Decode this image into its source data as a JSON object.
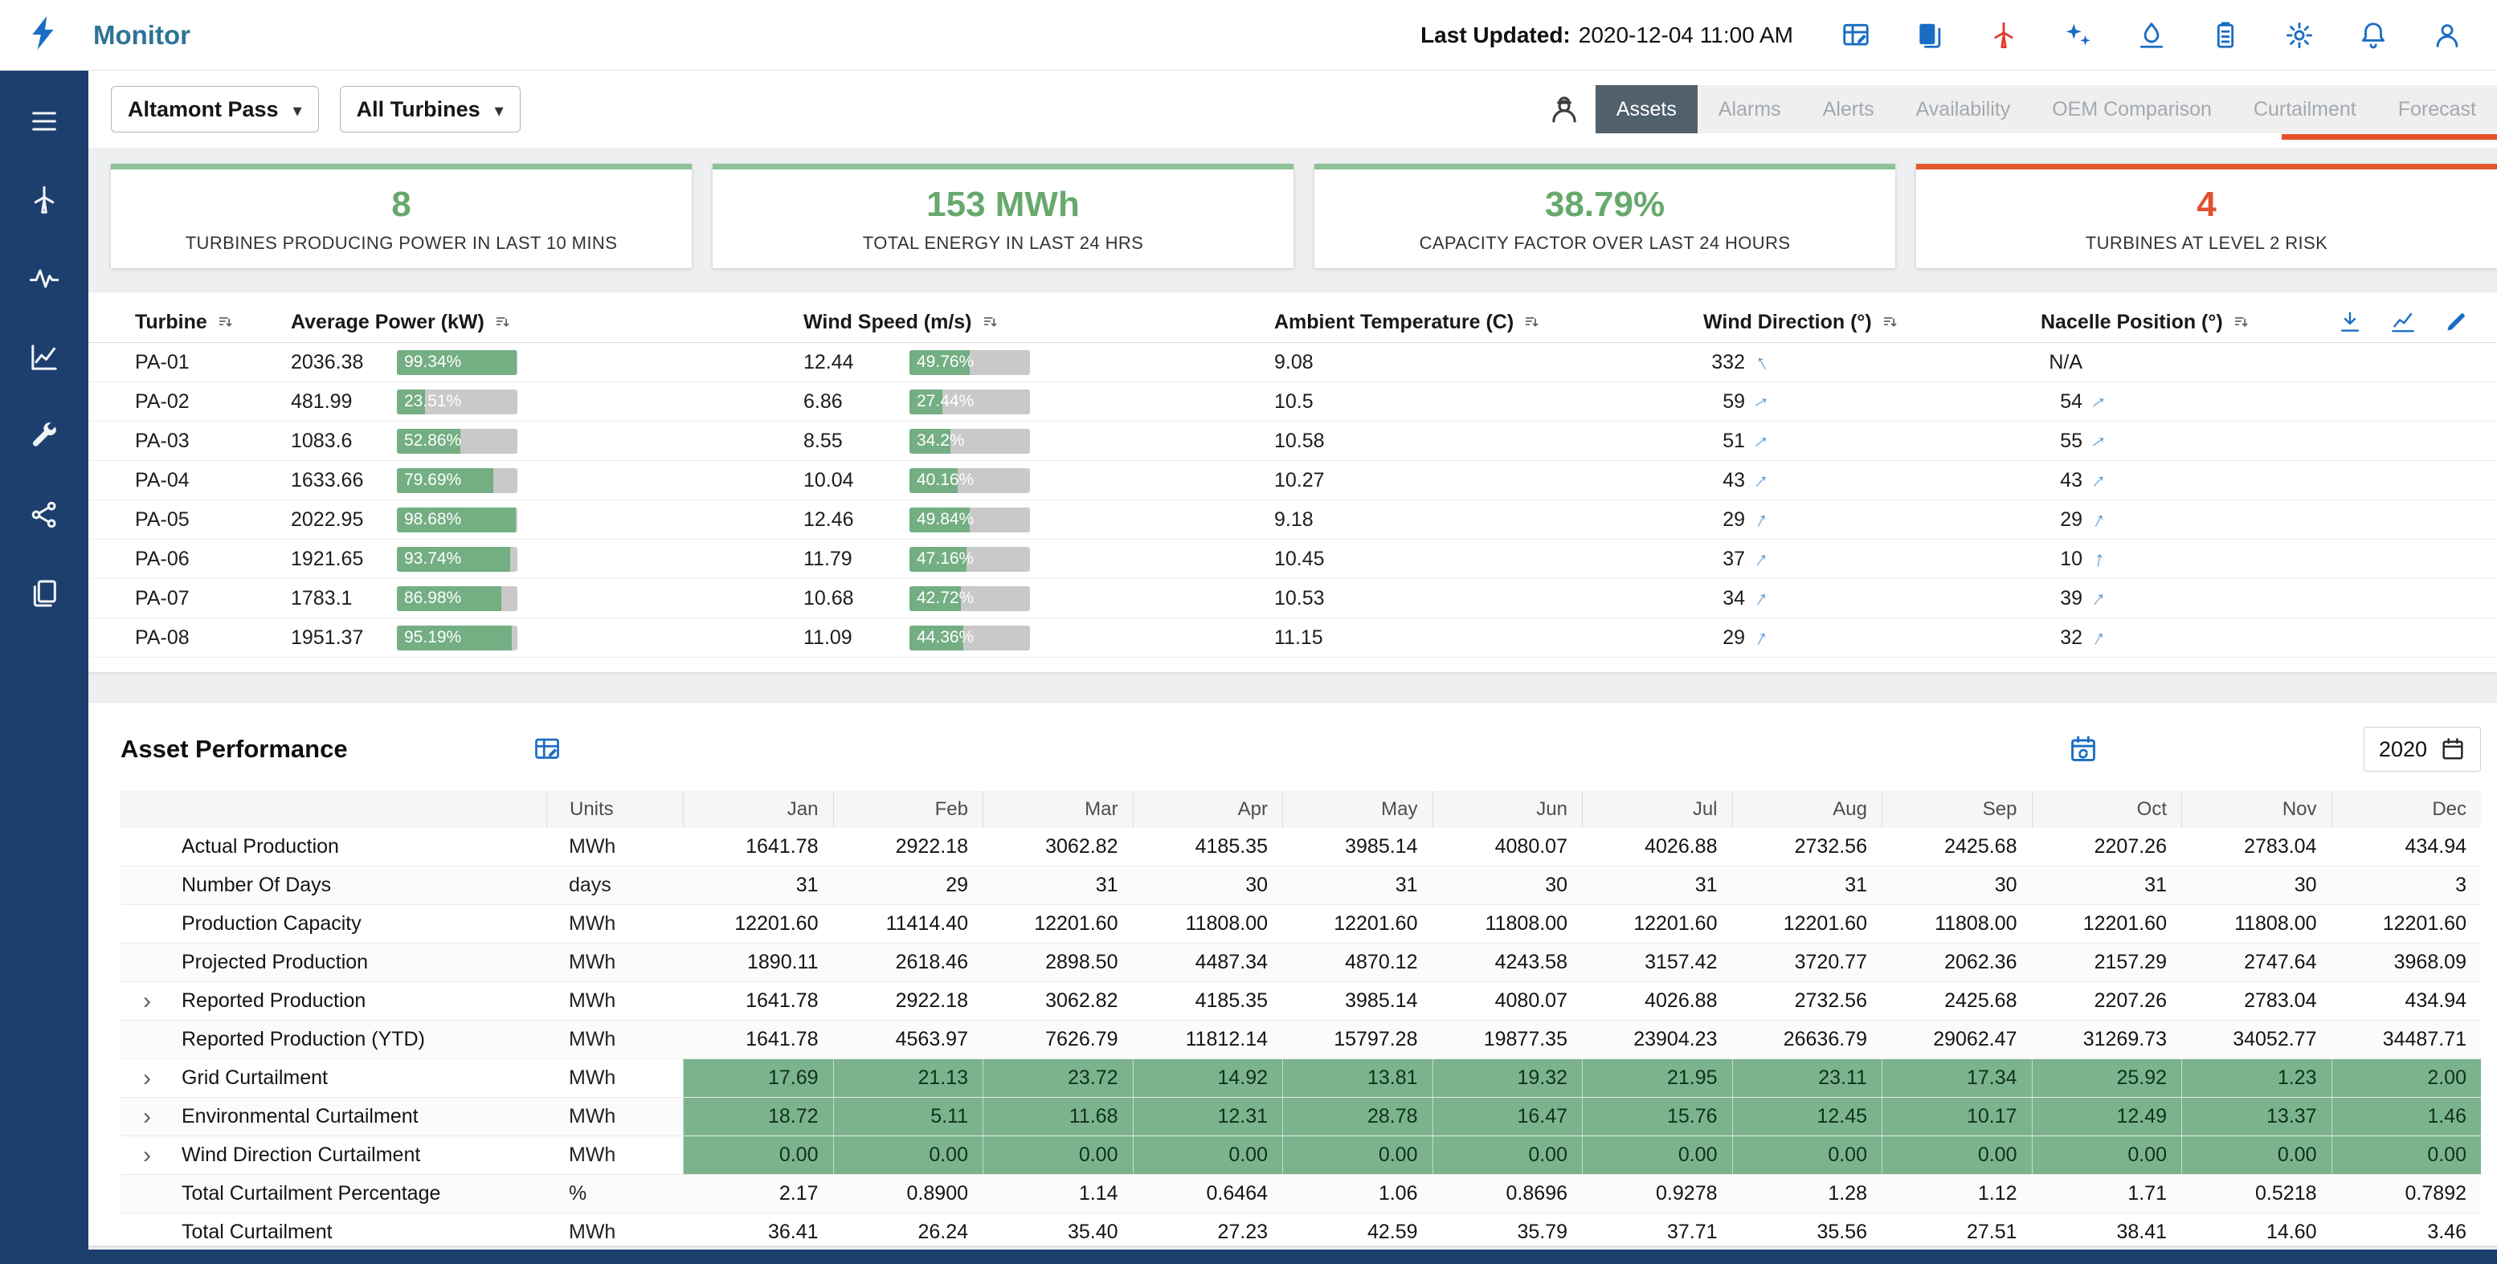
{
  "app": {
    "title": "Monitor",
    "last_updated_label": "Last Updated:",
    "last_updated_value": "2020-12-04 11:00 AM"
  },
  "header": {
    "icons": [
      {
        "name": "dashboard-edit-icon",
        "icon": "grid-edit",
        "color": "#1a6dc3"
      },
      {
        "name": "reports-icon",
        "icon": "reports",
        "color": "#1a6dc3"
      },
      {
        "name": "turbine-alert-icon",
        "icon": "turbine",
        "color": "#e03a2f"
      },
      {
        "name": "ai-insights-icon",
        "icon": "sparkles",
        "color": "#1a6dc3"
      },
      {
        "name": "hydro-icon",
        "icon": "hydro",
        "color": "#1a6dc3"
      },
      {
        "name": "storage-icon",
        "icon": "storage",
        "color": "#1a6dc3"
      },
      {
        "name": "settings-icon",
        "icon": "gear",
        "color": "#1a6dc3"
      },
      {
        "name": "notifications-icon",
        "icon": "bell",
        "color": "#1a6dc3"
      },
      {
        "name": "profile-icon",
        "icon": "person",
        "color": "#1a6dc3"
      }
    ]
  },
  "sidebar": {
    "items": [
      {
        "name": "menu",
        "icon": "menu"
      },
      {
        "name": "turbines",
        "icon": "turbine"
      },
      {
        "name": "performance",
        "icon": "pulse"
      },
      {
        "name": "analytics",
        "icon": "chart-line"
      },
      {
        "name": "maintenance",
        "icon": "wrench"
      },
      {
        "name": "connections",
        "icon": "share"
      },
      {
        "name": "documents",
        "icon": "docs"
      }
    ]
  },
  "toolbar": {
    "site_selector": "Altamont Pass",
    "turbine_selector": "All Turbines",
    "tabs": [
      {
        "label": "Assets",
        "active": true
      },
      {
        "label": "Alarms",
        "active": false
      },
      {
        "label": "Alerts",
        "active": false
      },
      {
        "label": "Availability",
        "active": false
      },
      {
        "label": "OEM Comparison",
        "active": false
      },
      {
        "label": "Curtailment",
        "active": false
      },
      {
        "label": "Forecast",
        "active": false
      }
    ]
  },
  "kpis": [
    {
      "value": "8",
      "label": "TURBINES PRODUCING POWER IN LAST 10 MINS",
      "status": "ok"
    },
    {
      "value": "153 MWh",
      "label": "TOTAL ENERGY IN LAST 24 HRS",
      "status": "ok"
    },
    {
      "value": "38.79%",
      "label": "CAPACITY FACTOR OVER LAST 24 HOURS",
      "status": "ok"
    },
    {
      "value": "4",
      "label": "TURBINES AT LEVEL 2 RISK",
      "status": "alert"
    }
  ],
  "turbine_table": {
    "columns": [
      "Turbine",
      "Average Power (kW)",
      "Wind Speed (m/s)",
      "Ambient Temperature (C)",
      "Wind Direction (°)",
      "Nacelle Position (°)"
    ],
    "rows": [
      {
        "id": "PA-01",
        "power": "2036.38",
        "power_pct": "99.34%",
        "speed": "12.44",
        "speed_pct": "49.76%",
        "temp": "9.08",
        "dir": "332",
        "nacelle": "N/A"
      },
      {
        "id": "PA-02",
        "power": "481.99",
        "power_pct": "23.51%",
        "speed": "6.86",
        "speed_pct": "27.44%",
        "temp": "10.5",
        "dir": "59",
        "nacelle": "54"
      },
      {
        "id": "PA-03",
        "power": "1083.6",
        "power_pct": "52.86%",
        "speed": "8.55",
        "speed_pct": "34.2%",
        "temp": "10.58",
        "dir": "51",
        "nacelle": "55"
      },
      {
        "id": "PA-04",
        "power": "1633.66",
        "power_pct": "79.69%",
        "speed": "10.04",
        "speed_pct": "40.16%",
        "temp": "10.27",
        "dir": "43",
        "nacelle": "43"
      },
      {
        "id": "PA-05",
        "power": "2022.95",
        "power_pct": "98.68%",
        "speed": "12.46",
        "speed_pct": "49.84%",
        "temp": "9.18",
        "dir": "29",
        "nacelle": "29"
      },
      {
        "id": "PA-06",
        "power": "1921.65",
        "power_pct": "93.74%",
        "speed": "11.79",
        "speed_pct": "47.16%",
        "temp": "10.45",
        "dir": "37",
        "nacelle": "10"
      },
      {
        "id": "PA-07",
        "power": "1783.1",
        "power_pct": "86.98%",
        "speed": "10.68",
        "speed_pct": "42.72%",
        "temp": "10.53",
        "dir": "34",
        "nacelle": "39"
      },
      {
        "id": "PA-08",
        "power": "1951.37",
        "power_pct": "95.19%",
        "speed": "11.09",
        "speed_pct": "44.36%",
        "temp": "11.15",
        "dir": "29",
        "nacelle": "32"
      }
    ]
  },
  "asset_performance": {
    "title": "Asset Performance",
    "year": "2020",
    "columns": [
      "",
      "Units",
      "Jan",
      "Feb",
      "Mar",
      "Apr",
      "May",
      "Jun",
      "Jul",
      "Aug",
      "Sep",
      "Oct",
      "Nov",
      "Dec"
    ],
    "rows": [
      {
        "label": "Actual Production",
        "units": "MWh",
        "expandable": false,
        "highlight": false,
        "values": [
          "1641.78",
          "2922.18",
          "3062.82",
          "4185.35",
          "3985.14",
          "4080.07",
          "4026.88",
          "2732.56",
          "2425.68",
          "2207.26",
          "2783.04",
          "434.94"
        ]
      },
      {
        "label": "Number Of Days",
        "units": "days",
        "expandable": false,
        "highlight": false,
        "values": [
          "31",
          "29",
          "31",
          "30",
          "31",
          "30",
          "31",
          "31",
          "30",
          "31",
          "30",
          "3"
        ]
      },
      {
        "label": "Production Capacity",
        "units": "MWh",
        "expandable": false,
        "highlight": false,
        "values": [
          "12201.60",
          "11414.40",
          "12201.60",
          "11808.00",
          "12201.60",
          "11808.00",
          "12201.60",
          "12201.60",
          "11808.00",
          "12201.60",
          "11808.00",
          "12201.60"
        ]
      },
      {
        "label": "Projected Production",
        "units": "MWh",
        "expandable": false,
        "highlight": false,
        "values": [
          "1890.11",
          "2618.46",
          "2898.50",
          "4487.34",
          "4870.12",
          "4243.58",
          "3157.42",
          "3720.77",
          "2062.36",
          "2157.29",
          "2747.64",
          "3968.09"
        ]
      },
      {
        "label": "Reported Production",
        "units": "MWh",
        "expandable": true,
        "highlight": false,
        "values": [
          "1641.78",
          "2922.18",
          "3062.82",
          "4185.35",
          "3985.14",
          "4080.07",
          "4026.88",
          "2732.56",
          "2425.68",
          "2207.26",
          "2783.04",
          "434.94"
        ]
      },
      {
        "label": "Reported Production (YTD)",
        "units": "MWh",
        "expandable": false,
        "highlight": false,
        "values": [
          "1641.78",
          "4563.97",
          "7626.79",
          "11812.14",
          "15797.28",
          "19877.35",
          "23904.23",
          "26636.79",
          "29062.47",
          "31269.73",
          "34052.77",
          "34487.71"
        ]
      },
      {
        "label": "Grid Curtailment",
        "units": "MWh",
        "expandable": true,
        "highlight": true,
        "values": [
          "17.69",
          "21.13",
          "23.72",
          "14.92",
          "13.81",
          "19.32",
          "21.95",
          "23.11",
          "17.34",
          "25.92",
          "1.23",
          "2.00"
        ]
      },
      {
        "label": "Environmental Curtailment",
        "units": "MWh",
        "expandable": true,
        "highlight": true,
        "values": [
          "18.72",
          "5.11",
          "11.68",
          "12.31",
          "28.78",
          "16.47",
          "15.76",
          "12.45",
          "10.17",
          "12.49",
          "13.37",
          "1.46"
        ]
      },
      {
        "label": "Wind Direction Curtailment",
        "units": "MWh",
        "expandable": true,
        "highlight": true,
        "values": [
          "0.00",
          "0.00",
          "0.00",
          "0.00",
          "0.00",
          "0.00",
          "0.00",
          "0.00",
          "0.00",
          "0.00",
          "0.00",
          "0.00"
        ]
      },
      {
        "label": "Total Curtailment Percentage",
        "units": "%",
        "expandable": false,
        "highlight": false,
        "values": [
          "2.17",
          "0.8900",
          "1.14",
          "0.6464",
          "1.06",
          "0.8696",
          "0.9278",
          "1.28",
          "1.12",
          "1.71",
          "0.5218",
          "0.7892"
        ]
      },
      {
        "label": "Total Curtailment",
        "units": "MWh",
        "expandable": false,
        "highlight": false,
        "values": [
          "36.41",
          "26.24",
          "35.40",
          "27.23",
          "42.59",
          "35.79",
          "37.71",
          "35.56",
          "27.51",
          "38.41",
          "14.60",
          "3.46"
        ]
      }
    ]
  },
  "colors": {
    "accent_blue": "#1a6dc3",
    "green": "#67a96d",
    "badge_green": "#74ae83",
    "alert_orange": "#e0512d",
    "navy": "#1d3f6e"
  }
}
